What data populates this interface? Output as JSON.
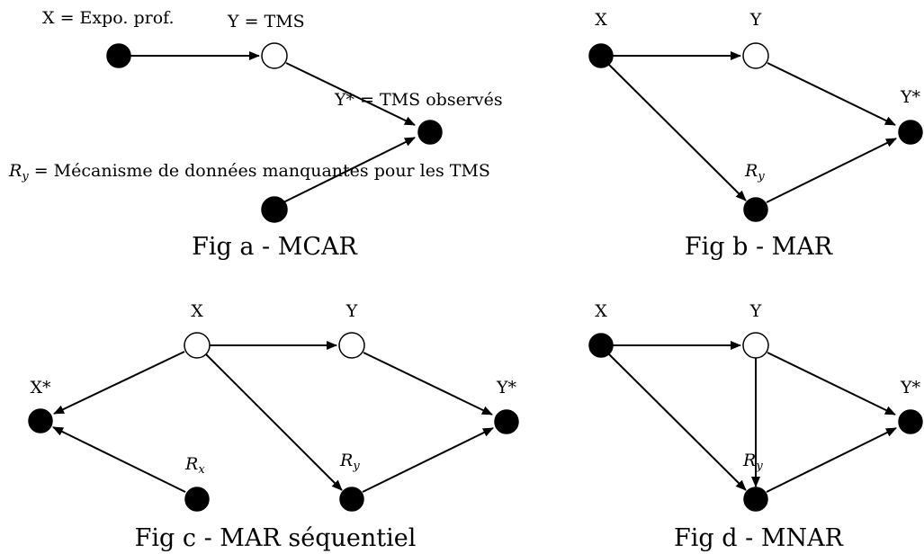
{
  "diagrams": [
    {
      "id": "a",
      "caption": "Fig a - MCAR",
      "labels": {
        "x": "X = Expo. prof.",
        "y": "Y = TMS",
        "ystar": "Y* = TMS observés",
        "ry_var": "R",
        "ry_sub": "y",
        "ry_text": " = Mécanisme de données manquantes pour les TMS"
      }
    },
    {
      "id": "b",
      "caption": "Fig b - MAR",
      "labels": {
        "x": "X",
        "y": "Y",
        "ystar": "Y*",
        "ry_var": "R",
        "ry_sub": "y"
      }
    },
    {
      "id": "c",
      "caption": "Fig c - MAR séquentiel",
      "labels": {
        "x": "X",
        "y": "Y",
        "xstar": "X*",
        "ystar": "Y*",
        "rx_var": "R",
        "rx_sub": "x",
        "ry_var": "R",
        "ry_sub": "y"
      }
    },
    {
      "id": "d",
      "caption": "Fig d - MNAR",
      "labels": {
        "x": "X",
        "y": "Y",
        "ystar": "Y*",
        "ry_var": "R",
        "ry_sub": "y"
      }
    }
  ]
}
